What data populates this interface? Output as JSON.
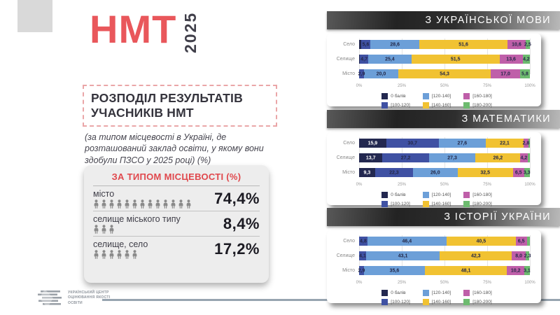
{
  "colors": {
    "accent_red": "#e9575b",
    "navy": "#232850",
    "royal": "#3f51a3",
    "light_blue": "#6c9fd8",
    "yellow": "#f1c232",
    "magenta": "#bf5fa9",
    "green": "#6dbb6f",
    "panel_gray": "#ededed",
    "people_gray": "#8a8a8a",
    "divider_slate": "#97a4b0"
  },
  "logo": {
    "brand": "НМТ",
    "year": "2025"
  },
  "title": {
    "text": "РОЗПОДІЛ РЕЗУЛЬТАТІВ\nУЧАСНИКІВ НМТ"
  },
  "subtitle": "(за типом місцевості в Україні, де розташований заклад освіти, у якому вони здобули ПЗСО у 2025 році)  (%)",
  "locality_box": {
    "header": "ЗА ТИПОМ МІСЦЕВОСТІ (%)",
    "rows": [
      {
        "label": "місто",
        "value": "74,4%",
        "icons": 13
      },
      {
        "label": "селище міського типу",
        "value": "8,4%",
        "icons": 3
      },
      {
        "label": "селище, село",
        "value": "17,2%",
        "icons": 6
      }
    ]
  },
  "footer": {
    "org": "УКРАЇНСЬКИЙ ЦЕНТР ОЦІНЮВАННЯ ЯКОСТІ ОСВІТИ"
  },
  "legend": {
    "items": [
      {
        "label": "0 балів",
        "color_key": "navy"
      },
      {
        "label": "[100-120]",
        "color_key": "royal"
      },
      {
        "label": "[120-140]",
        "color_key": "light_blue"
      },
      {
        "label": "[140-160]",
        "color_key": "yellow"
      },
      {
        "label": "[160-180]",
        "color_key": "magenta"
      },
      {
        "label": "[180-200]",
        "color_key": "green"
      }
    ]
  },
  "axis_ticks": [
    "0%",
    "25%",
    "50%",
    "75%",
    "100%"
  ],
  "chart_data": [
    {
      "type": "bar",
      "stacked": true,
      "title": "З УКРАЇНСЬКОЇ МОВИ",
      "xlim": [
        0,
        100
      ],
      "legend_position": "bottom",
      "grid": true,
      "categories": [
        "Село",
        "Селище",
        "Місто"
      ],
      "series": [
        {
          "name": "0 балів",
          "color_key": "navy",
          "values": [
            1.1,
            0.6,
            0
          ]
        },
        {
          "name": "[100-120]",
          "color_key": "royal",
          "values": [
            5.6,
            4.7,
            2.9
          ]
        },
        {
          "name": "[120-140]",
          "color_key": "light_blue",
          "values": [
            28.6,
            25.4,
            20.0
          ]
        },
        {
          "name": "[140-160]",
          "color_key": "yellow",
          "values": [
            51.6,
            51.5,
            54.3
          ]
        },
        {
          "name": "[160-180]",
          "color_key": "magenta",
          "values": [
            10.6,
            13.6,
            17.0
          ]
        },
        {
          "name": "[180-200]",
          "color_key": "green",
          "values": [
            2.5,
            4.2,
            5.8
          ]
        }
      ],
      "labels": [
        [
          "",
          "5,6",
          "28,6",
          "51,6",
          "10,6",
          "2,5"
        ],
        [
          "",
          "4,7",
          "25,4",
          "51,5",
          "13,6",
          "4,2"
        ],
        [
          "",
          "2,9",
          "20,0",
          "54,3",
          "17,0",
          "5,8"
        ]
      ]
    },
    {
      "type": "bar",
      "stacked": true,
      "title": "З МАТЕМАТИКИ",
      "xlim": [
        0,
        100
      ],
      "legend_position": "bottom",
      "grid": true,
      "categories": [
        "Село",
        "Селище",
        "Місто"
      ],
      "series": [
        {
          "name": "0 балів",
          "color_key": "navy",
          "values": [
            15.9,
            13.7,
            9.3
          ]
        },
        {
          "name": "[100-120]",
          "color_key": "royal",
          "values": [
            30.7,
            27.2,
            22.3
          ]
        },
        {
          "name": "[120-140]",
          "color_key": "light_blue",
          "values": [
            27.6,
            27.3,
            26.0
          ]
        },
        {
          "name": "[140-160]",
          "color_key": "yellow",
          "values": [
            22.1,
            26.2,
            32.5
          ]
        },
        {
          "name": "[160-180]",
          "color_key": "magenta",
          "values": [
            2.8,
            4.2,
            6.5
          ]
        },
        {
          "name": "[180-200]",
          "color_key": "green",
          "values": [
            0.9,
            1.4,
            3.3
          ]
        }
      ],
      "labels": [
        [
          "15,9",
          "30,7",
          "27,6",
          "22,1",
          "2,8",
          ""
        ],
        [
          "13,7",
          "27,2",
          "27,3",
          "26,2",
          "4,2",
          ""
        ],
        [
          "9,3",
          "22,3",
          "26,0",
          "32,5",
          "6,5",
          "3,3"
        ]
      ]
    },
    {
      "type": "bar",
      "stacked": true,
      "title": "З ІСТОРІЇ УКРАЇНИ",
      "xlim": [
        0,
        100
      ],
      "legend_position": "bottom",
      "grid": true,
      "categories": [
        "Село",
        "Селище",
        "Місто"
      ],
      "series": [
        {
          "name": "0 балів",
          "color_key": "navy",
          "values": [
            0,
            0,
            0
          ]
        },
        {
          "name": "[100-120]",
          "color_key": "royal",
          "values": [
            4.8,
            4.1,
            2.9
          ]
        },
        {
          "name": "[120-140]",
          "color_key": "light_blue",
          "values": [
            46.4,
            43.1,
            35.6
          ]
        },
        {
          "name": "[140-160]",
          "color_key": "yellow",
          "values": [
            40.5,
            42.3,
            48.1
          ]
        },
        {
          "name": "[160-180]",
          "color_key": "magenta",
          "values": [
            6.5,
            8.0,
            10.2
          ]
        },
        {
          "name": "[180-200]",
          "color_key": "green",
          "values": [
            1.8,
            2.3,
            3.1
          ]
        }
      ],
      "labels": [
        [
          "",
          "4,8",
          "46,4",
          "40,5",
          "6,5",
          ""
        ],
        [
          "",
          "4,1",
          "43,1",
          "42,3",
          "8,0",
          "2,3"
        ],
        [
          "",
          "2,9",
          "35,6",
          "48,1",
          "10,2",
          "3,1"
        ]
      ]
    }
  ]
}
